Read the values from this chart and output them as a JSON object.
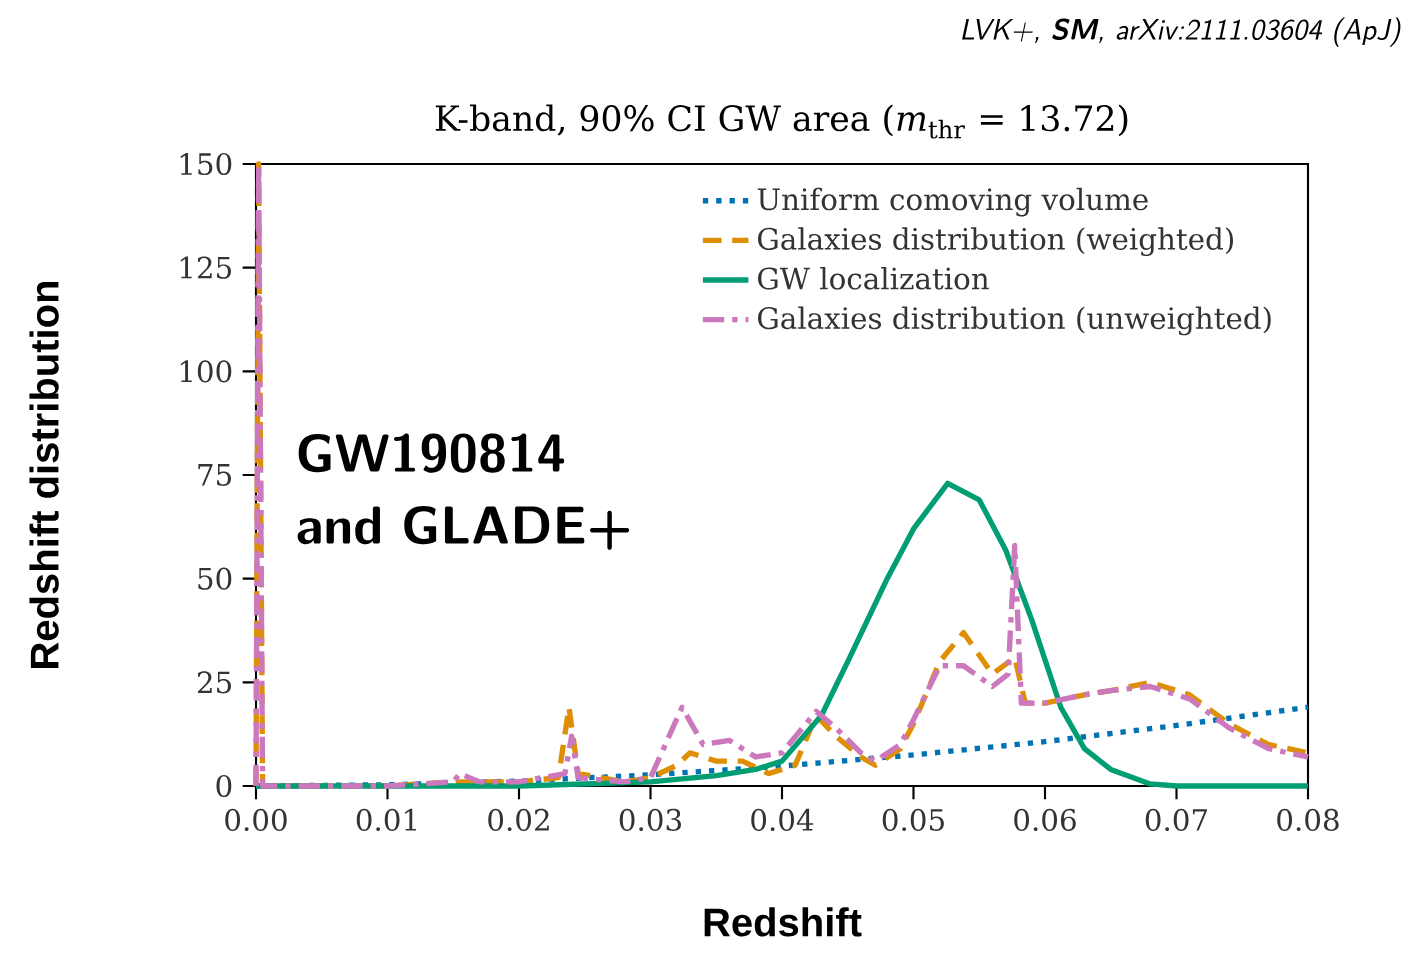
{
  "chart_data": {
    "type": "line",
    "title": "K-band, 90% CI GW area (*m*$_{thr}$ = 13.72)",
    "xlabel": "Redshift",
    "ylabel": "Redshift distribution",
    "annotations": [
      "LVK+, **SM**, arXiv:2111.03604 (ApJ)",
      "GW190814 and GLADE+"
    ],
    "xlim": [
      0,
      0.08
    ],
    "ylim": [
      0,
      150
    ],
    "xticks": [
      {
        "value": 0,
        "label": "0.00"
      },
      {
        "value": 0.01,
        "label": "0.01"
      },
      {
        "value": 0.02,
        "label": "0.02"
      },
      {
        "value": 0.03,
        "label": "0.03"
      },
      {
        "value": 0.04,
        "label": "0.04"
      },
      {
        "value": 0.05,
        "label": "0.05"
      },
      {
        "value": 0.06,
        "label": "0.06"
      },
      {
        "value": 0.07,
        "label": "0.07"
      },
      {
        "value": 0.08,
        "label": "0.08"
      }
    ],
    "yticks": [
      0,
      25,
      50,
      75,
      100,
      125,
      150
    ],
    "grid": false,
    "legend": "top right",
    "marker": "none",
    "series": [
      {
        "name": "Uniform comoving volume",
        "color": "#0173b2",
        "line_style": "dotted",
        "x": [
          0,
          0.01,
          0.02,
          0.03,
          0.04,
          0.05,
          0.06,
          0.07,
          0.08
        ],
        "values": [
          0,
          0.3,
          1.2,
          2.7,
          4.8,
          7.5,
          10.7,
          14.6,
          19
        ]
      },
      {
        "name": "Galaxies distribution (weighted)",
        "color": "#de8f05",
        "line_style": "dashed",
        "x": [
          0,
          0.0002,
          0.0005,
          0.01,
          0.015,
          0.02,
          0.023,
          0.0238,
          0.0245,
          0.028,
          0.03,
          0.032,
          0.033,
          0.035,
          0.037,
          0.039,
          0.041,
          0.0426,
          0.0441,
          0.046,
          0.0471,
          0.049,
          0.05,
          0.052,
          0.0538,
          0.056,
          0.0577,
          0.0585,
          0.06,
          0.063,
          0.065,
          0.068,
          0.071,
          0.074,
          0.077,
          0.08
        ],
        "values": [
          0,
          150,
          0,
          0,
          1,
          1,
          2,
          19,
          3,
          1,
          2,
          5,
          8,
          6,
          6,
          3,
          5,
          17,
          12,
          7,
          5,
          9,
          15,
          30,
          37,
          27,
          31,
          20,
          20,
          22,
          23,
          25,
          22,
          15,
          10,
          8
        ]
      },
      {
        "name": "GW localization",
        "color": "#029e73",
        "line_style": "solid",
        "x": [
          0,
          0.02,
          0.03,
          0.035,
          0.038,
          0.04,
          0.043,
          0.045,
          0.048,
          0.05,
          0.0526,
          0.055,
          0.057,
          0.059,
          0.0612,
          0.063,
          0.065,
          0.068,
          0.07,
          0.08
        ],
        "values": [
          0,
          0,
          1,
          2.5,
          4,
          6,
          17,
          30,
          50,
          62,
          73,
          69,
          57,
          40,
          19,
          9,
          4,
          0.5,
          0,
          0
        ]
      },
      {
        "name": "Galaxies distribution (unweighted)",
        "color": "#cc78bc",
        "line_style": "dashdot",
        "x": [
          0,
          0.0002,
          0.0005,
          0.01,
          0.015,
          0.0155,
          0.017,
          0.02,
          0.0235,
          0.024,
          0.0245,
          0.028,
          0.03,
          0.0324,
          0.034,
          0.036,
          0.038,
          0.04,
          0.0426,
          0.0441,
          0.046,
          0.0471,
          0.049,
          0.05,
          0.052,
          0.0538,
          0.056,
          0.0572,
          0.0577,
          0.0582,
          0.06,
          0.063,
          0.065,
          0.068,
          0.071,
          0.074,
          0.077,
          0.08
        ],
        "values": [
          0,
          150,
          0,
          0,
          1,
          3,
          1,
          1,
          3,
          12,
          2,
          1,
          2,
          19,
          10,
          11,
          7,
          8,
          18,
          14,
          8,
          6,
          10,
          16,
          29,
          29,
          24,
          27,
          58,
          20,
          20,
          22,
          23,
          24,
          21,
          14,
          9,
          7
        ]
      }
    ]
  }
}
